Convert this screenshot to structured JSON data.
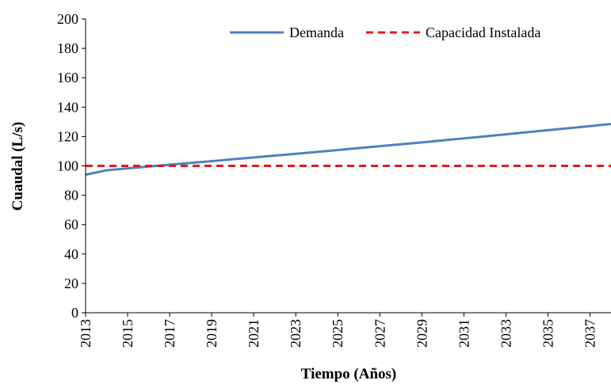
{
  "chart_data": {
    "type": "line",
    "xlabel": "Tiempo (Años)",
    "ylabel": "Cuaudal (L/s)",
    "x": [
      2013,
      2014,
      2015,
      2016,
      2017,
      2018,
      2019,
      2020,
      2021,
      2022,
      2023,
      2024,
      2025,
      2026,
      2027,
      2028,
      2029,
      2030,
      2031,
      2032,
      2033,
      2034,
      2035,
      2036,
      2037,
      2038
    ],
    "series": [
      {
        "name": "Demanda",
        "color": "#4f81bd",
        "dash": false,
        "values": [
          94,
          97,
          98.3,
          99.5,
          100.8,
          102,
          103.2,
          104.5,
          105.7,
          107,
          108.2,
          109.5,
          110.8,
          112.1,
          113.4,
          114.7,
          116,
          117.4,
          118.7,
          120.1,
          121.5,
          122.9,
          124.3,
          125.7,
          127.1,
          128.5
        ]
      },
      {
        "name": "Capacidad Instalada",
        "color": "#e31a1c",
        "dash": true,
        "values": [
          100,
          100,
          100,
          100,
          100,
          100,
          100,
          100,
          100,
          100,
          100,
          100,
          100,
          100,
          100,
          100,
          100,
          100,
          100,
          100,
          100,
          100,
          100,
          100,
          100,
          100
        ]
      }
    ],
    "xlim": [
      2013,
      2038
    ],
    "xticks": [
      2013,
      2015,
      2017,
      2019,
      2021,
      2023,
      2025,
      2027,
      2029,
      2031,
      2033,
      2035,
      2037
    ],
    "ylim": [
      0,
      200
    ],
    "yticks": [
      0,
      20,
      40,
      60,
      80,
      100,
      120,
      140,
      160,
      180,
      200
    ],
    "grid": false,
    "legend": "top-right"
  }
}
